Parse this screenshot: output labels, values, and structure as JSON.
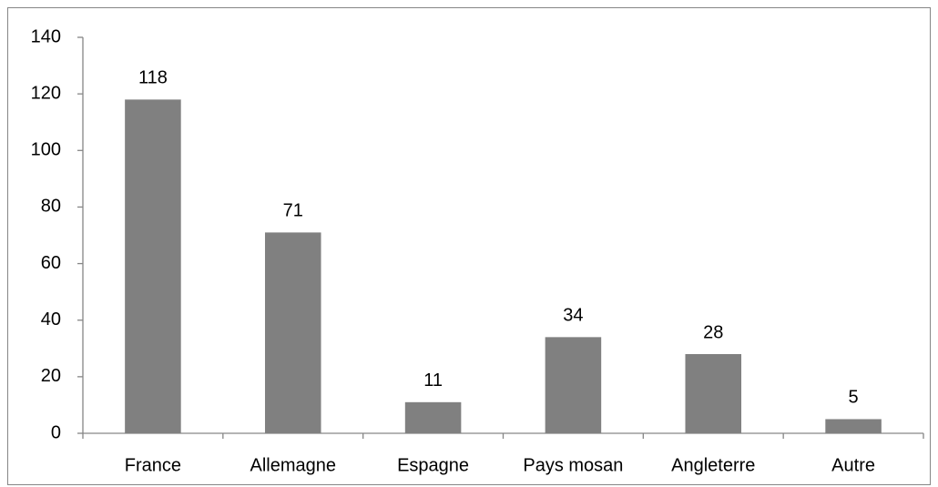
{
  "chart_data": {
    "type": "bar",
    "categories": [
      "France",
      "Allemagne",
      "Espagne",
      "Pays mosan",
      "Angleterre",
      "Autre"
    ],
    "values": [
      118,
      71,
      11,
      34,
      28,
      5
    ],
    "color": "#808080",
    "ylim": [
      0,
      140
    ],
    "yticks": [
      0,
      20,
      40,
      60,
      80,
      100,
      120,
      140
    ],
    "grid": false
  }
}
